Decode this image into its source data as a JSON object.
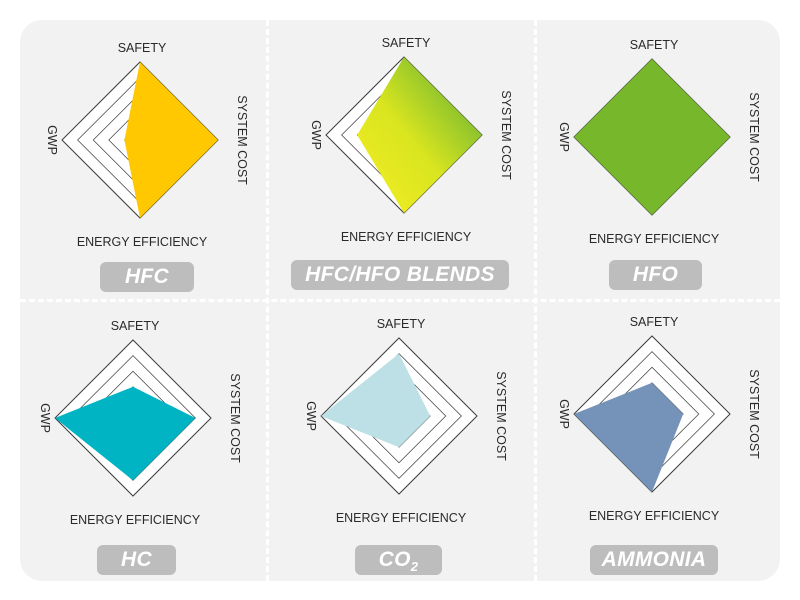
{
  "axes": [
    "SAFETY",
    "SYSTEM COST",
    "ENERGY EFFICIENCY",
    "GWP"
  ],
  "chart_data": [
    {
      "type": "radar",
      "title": "HFC",
      "axes": [
        "SAFETY",
        "SYSTEM COST",
        "ENERGY EFFICIENCY",
        "GWP"
      ],
      "scale": [
        0,
        5
      ],
      "values": [
        5,
        5,
        5,
        1
      ],
      "fill": "#ffc800"
    },
    {
      "type": "radar",
      "title": "HFC/HFO BLENDS",
      "axes": [
        "SAFETY",
        "SYSTEM COST",
        "ENERGY EFFICIENCY",
        "GWP"
      ],
      "scale": [
        0,
        5
      ],
      "values": [
        5,
        5,
        5,
        3
      ],
      "fill": "gradient",
      "fill_colors": [
        "#f7ee24",
        "#d9e51f",
        "#4fa838"
      ]
    },
    {
      "type": "radar",
      "title": "HFO",
      "axes": [
        "SAFETY",
        "SYSTEM COST",
        "ENERGY EFFICIENCY",
        "GWP"
      ],
      "scale": [
        0,
        5
      ],
      "values": [
        5,
        5,
        5,
        5
      ],
      "fill": "#77b72c"
    },
    {
      "type": "radar",
      "title": "HC",
      "axes": [
        "SAFETY",
        "SYSTEM COST",
        "ENERGY EFFICIENCY",
        "GWP"
      ],
      "scale": [
        0,
        5
      ],
      "values": [
        2,
        4,
        4,
        5
      ],
      "fill": "#00b4c4"
    },
    {
      "type": "radar",
      "title": "CO",
      "title_sub": "2",
      "axes": [
        "SAFETY",
        "SYSTEM COST",
        "ENERGY EFFICIENCY",
        "GWP"
      ],
      "scale": [
        0,
        5
      ],
      "values": [
        4,
        2,
        2,
        5
      ],
      "fill": "#bde0e6"
    },
    {
      "type": "radar",
      "title": "AMMONIA",
      "axes": [
        "SAFETY",
        "SYSTEM COST",
        "ENERGY EFFICIENCY",
        "GWP"
      ],
      "scale": [
        0,
        5
      ],
      "values": [
        2,
        2,
        5,
        5
      ],
      "fill": "#7593b8"
    }
  ]
}
